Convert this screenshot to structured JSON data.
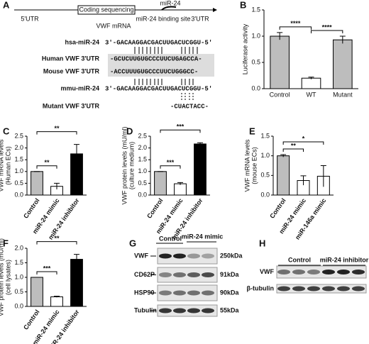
{
  "panel_a": {
    "letter": "A",
    "utr5": "5'UTR",
    "cds": "Coding sequencing",
    "utr3": "3'UTR",
    "mir": "miR-24",
    "site": "miR-24 binding site",
    "mrna": "VWF mRNA",
    "rows": [
      {
        "label": "hsa-miR-24",
        "seq": "3'-GACAAGGACGACUUGACUCGGU-5'"
      },
      {
        "label": "Human  VWF 3'UTR",
        "seq": "-GCUCUUGUGCCCUUCUGAGCCA-"
      },
      {
        "label": "Mouse  VWF 3'UTR",
        "seq": "-ACCUUUGUGCCCUUCUGGGCC-"
      },
      {
        "label": "mmu-miR-24",
        "seq": "3'-GACAAGGACGACUUGACUCGGU-5'"
      },
      {
        "label": "Mutant  VWF 3'UTR",
        "seq": "-CUACTACC-"
      }
    ]
  },
  "chart_data": [
    {
      "type": "bar",
      "panel": "B",
      "y_label": [
        "Luciferase activity"
      ],
      "categories": [
        "Control",
        "WT",
        "Mutant"
      ],
      "values": [
        1.0,
        0.2,
        0.93
      ],
      "errors": [
        0.07,
        0.02,
        0.07
      ],
      "colors": [
        "#bdbdbd",
        "#ffffff",
        "#bdbdbd"
      ],
      "ylim": [
        0,
        1.5
      ],
      "yticks": [
        {
          "value": 0,
          "label": "0.0"
        },
        0.5,
        {
          "value": 1,
          "label": "1.0"
        },
        1.5
      ],
      "annotations": [
        "****",
        "****"
      ]
    },
    {
      "type": "bar",
      "panel": "C",
      "y_label": [
        "VWF mRNA levels",
        "(Human ECs)"
      ],
      "categories": [
        "Control",
        "miR-24 mimic",
        "miR-24 inhibitor"
      ],
      "values": [
        1.0,
        0.37,
        1.75
      ],
      "errors": [
        0,
        0.13,
        0.4
      ],
      "colors": [
        "#bdbdbd",
        "#ffffff",
        "#000000"
      ],
      "ylim": [
        0,
        2.5
      ],
      "yticks": [
        {
          "value": 0,
          "label": "0.0"
        },
        0.5,
        {
          "value": 1,
          "label": "1.0"
        },
        1.5,
        {
          "value": 2,
          "label": "2.0"
        },
        2.5
      ],
      "annotations": [
        "**",
        "**"
      ]
    },
    {
      "type": "bar",
      "panel": "D",
      "y_label": [
        "VWF protein levels (mU/ml)",
        "(culture medium)"
      ],
      "categories": [
        "Control",
        "miR-24 mimic",
        "miR-24 inhibitor"
      ],
      "values": [
        1.0,
        0.48,
        2.17
      ],
      "errors": [
        0,
        0.05,
        0.05
      ],
      "colors": [
        "#bdbdbd",
        "#ffffff",
        "#000000"
      ],
      "ylim": [
        0,
        2.5
      ],
      "yticks": [
        {
          "value": 0,
          "label": "0.0"
        },
        0.5,
        {
          "value": 1,
          "label": "1.0"
        },
        1.5,
        {
          "value": 2,
          "label": "2.0"
        },
        2.5
      ],
      "annotations": [
        "***",
        "***"
      ]
    },
    {
      "type": "bar",
      "panel": "E",
      "y_label": [
        "VWF mRNA levels",
        "(mouse ECs)"
      ],
      "categories": [
        "Control",
        "miR-24 mimic",
        "miR-146a mimic"
      ],
      "values": [
        1.0,
        0.37,
        0.48
      ],
      "errors": [
        0.03,
        0.12,
        0.27
      ],
      "colors": [
        "#bdbdbd",
        "#ffffff",
        "#ffffff"
      ],
      "ylim": [
        0,
        1.5
      ],
      "yticks": [
        {
          "value": 0,
          "label": "0.0"
        },
        0.5,
        {
          "value": 1,
          "label": "1.0"
        },
        1.5
      ],
      "annotations": [
        "**",
        "*"
      ]
    },
    {
      "type": "bar",
      "panel": "F",
      "y_label": [
        "VWF protein levels (mU/ml)",
        "(cell lysates)"
      ],
      "categories": [
        "Control",
        "miR-24 mimic",
        "miR-24 inhibitor"
      ],
      "values": [
        1.0,
        0.33,
        1.62
      ],
      "errors": [
        0,
        0.02,
        0.17
      ],
      "colors": [
        "#bdbdbd",
        "#ffffff",
        "#000000"
      ],
      "ylim": [
        0,
        2.0
      ],
      "yticks": [
        {
          "value": 0,
          "label": "0.0"
        },
        0.5,
        {
          "value": 1,
          "label": "1.0"
        },
        1.5,
        {
          "value": 2,
          "label": "2.0"
        }
      ],
      "annotations": [
        "***",
        "**"
      ]
    }
  ],
  "panel_g": {
    "letter": "G",
    "groups": [
      "Control",
      "miR-24 mimic"
    ],
    "rows": [
      {
        "label": "VWF",
        "size": "250kDa"
      },
      {
        "label": "CD62P",
        "size": "91kDa"
      },
      {
        "label": "HSP90",
        "size": "90kDa"
      },
      {
        "label": "Tubulin",
        "size": "55kDa"
      }
    ]
  },
  "panel_h": {
    "letter": "H",
    "groups": [
      "Control",
      "miR-24 inhibitor"
    ],
    "rows": [
      "VWF",
      "β-tubulin"
    ]
  }
}
